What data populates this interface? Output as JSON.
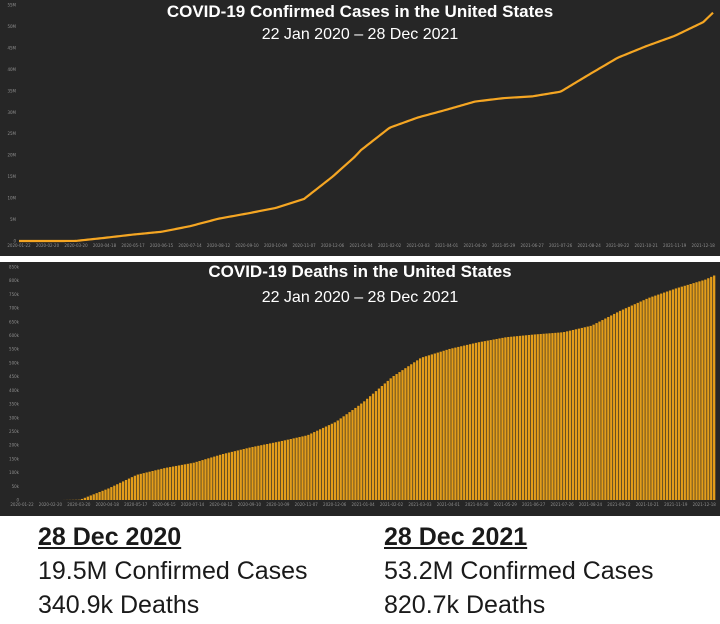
{
  "chart_data": [
    {
      "type": "line",
      "title": "COVID-19 Confirmed Cases in the United States",
      "subtitle": "22 Jan 2020 – 28 Dec 2021",
      "color": "#f5a623",
      "ylim": [
        0,
        55000000
      ],
      "yticks": [
        "0",
        "5M",
        "10M",
        "15M",
        "20M",
        "25M",
        "30M",
        "35M",
        "40M",
        "45M",
        "50M",
        "55M"
      ],
      "xticks": [
        "2020-01-22",
        "2020-02-20",
        "2020-03-20",
        "2020-04-18",
        "2020-05-17",
        "2020-06-15",
        "2020-07-14",
        "2020-08-12",
        "2020-09-10",
        "2020-10-09",
        "2020-11-07",
        "2020-12-06",
        "2021-01-04",
        "2021-02-02",
        "2021-03-03",
        "2021-04-01",
        "2021-04-30",
        "2021-05-29",
        "2021-06-27",
        "2021-07-26",
        "2021-08-24",
        "2021-09-22",
        "2021-10-21",
        "2021-11-19",
        "2021-12-18"
      ],
      "x": [
        "2020-01-22",
        "2020-03-01",
        "2020-03-20",
        "2020-04-18",
        "2020-05-17",
        "2020-06-15",
        "2020-07-14",
        "2020-08-12",
        "2020-09-10",
        "2020-10-09",
        "2020-11-07",
        "2020-12-06",
        "2020-12-28",
        "2021-01-04",
        "2021-02-02",
        "2021-03-03",
        "2021-04-01",
        "2021-04-30",
        "2021-05-29",
        "2021-06-27",
        "2021-07-26",
        "2021-08-24",
        "2021-09-22",
        "2021-10-21",
        "2021-11-19",
        "2021-12-18",
        "2021-12-28"
      ],
      "values": [
        0,
        100,
        20000,
        730000,
        1500000,
        2150000,
        3450000,
        5200000,
        6400000,
        7700000,
        9800000,
        15000000,
        19500000,
        21200000,
        26400000,
        28800000,
        30600000,
        32500000,
        33300000,
        33700000,
        34800000,
        38800000,
        42700000,
        45400000,
        47800000,
        51000000,
        53200000
      ]
    },
    {
      "type": "bar",
      "title": "COVID-19 Deaths in the United States",
      "subtitle": "22 Jan 2020 – 28 Dec 2021",
      "color": "#e39d1b",
      "ylim": [
        0,
        850000
      ],
      "yticks": [
        "0",
        "50k",
        "100k",
        "150k",
        "200k",
        "250k",
        "300k",
        "350k",
        "400k",
        "450k",
        "500k",
        "550k",
        "600k",
        "650k",
        "700k",
        "750k",
        "800k",
        "850k"
      ],
      "xticks": [
        "2020-01-22",
        "2020-02-20",
        "2020-03-20",
        "2020-04-18",
        "2020-05-17",
        "2020-06-15",
        "2020-07-14",
        "2020-08-12",
        "2020-09-10",
        "2020-10-09",
        "2020-11-07",
        "2020-12-06",
        "2021-01-04",
        "2021-02-02",
        "2021-03-03",
        "2021-04-01",
        "2021-04-30",
        "2021-05-29",
        "2021-06-27",
        "2021-07-26",
        "2021-08-24",
        "2021-09-22",
        "2021-10-21",
        "2021-11-19",
        "2021-12-18"
      ],
      "x": [
        "2020-01-22",
        "2020-03-01",
        "2020-03-20",
        "2020-04-18",
        "2020-05-17",
        "2020-06-15",
        "2020-07-14",
        "2020-08-12",
        "2020-09-10",
        "2020-10-09",
        "2020-11-07",
        "2020-12-06",
        "2020-12-28",
        "2021-01-04",
        "2021-02-02",
        "2021-03-03",
        "2021-04-01",
        "2021-04-30",
        "2021-05-29",
        "2021-06-27",
        "2021-07-26",
        "2021-08-24",
        "2021-09-22",
        "2021-10-21",
        "2021-11-19",
        "2021-12-18",
        "2021-12-28"
      ],
      "values": [
        0,
        0,
        1000,
        42000,
        92000,
        117000,
        136000,
        167000,
        192000,
        213000,
        236000,
        285000,
        340900,
        360000,
        450000,
        519000,
        551000,
        575000,
        594000,
        604000,
        612000,
        636000,
        690000,
        737000,
        773000,
        804000,
        820700
      ]
    }
  ],
  "summary": {
    "left": {
      "date": "28 Dec 2020",
      "cases": "19.5M Confirmed Cases",
      "deaths": "340.9k Deaths"
    },
    "right": {
      "date": "28 Dec 2021",
      "cases": "53.2M Confirmed Cases",
      "deaths": "820.7k Deaths"
    }
  }
}
